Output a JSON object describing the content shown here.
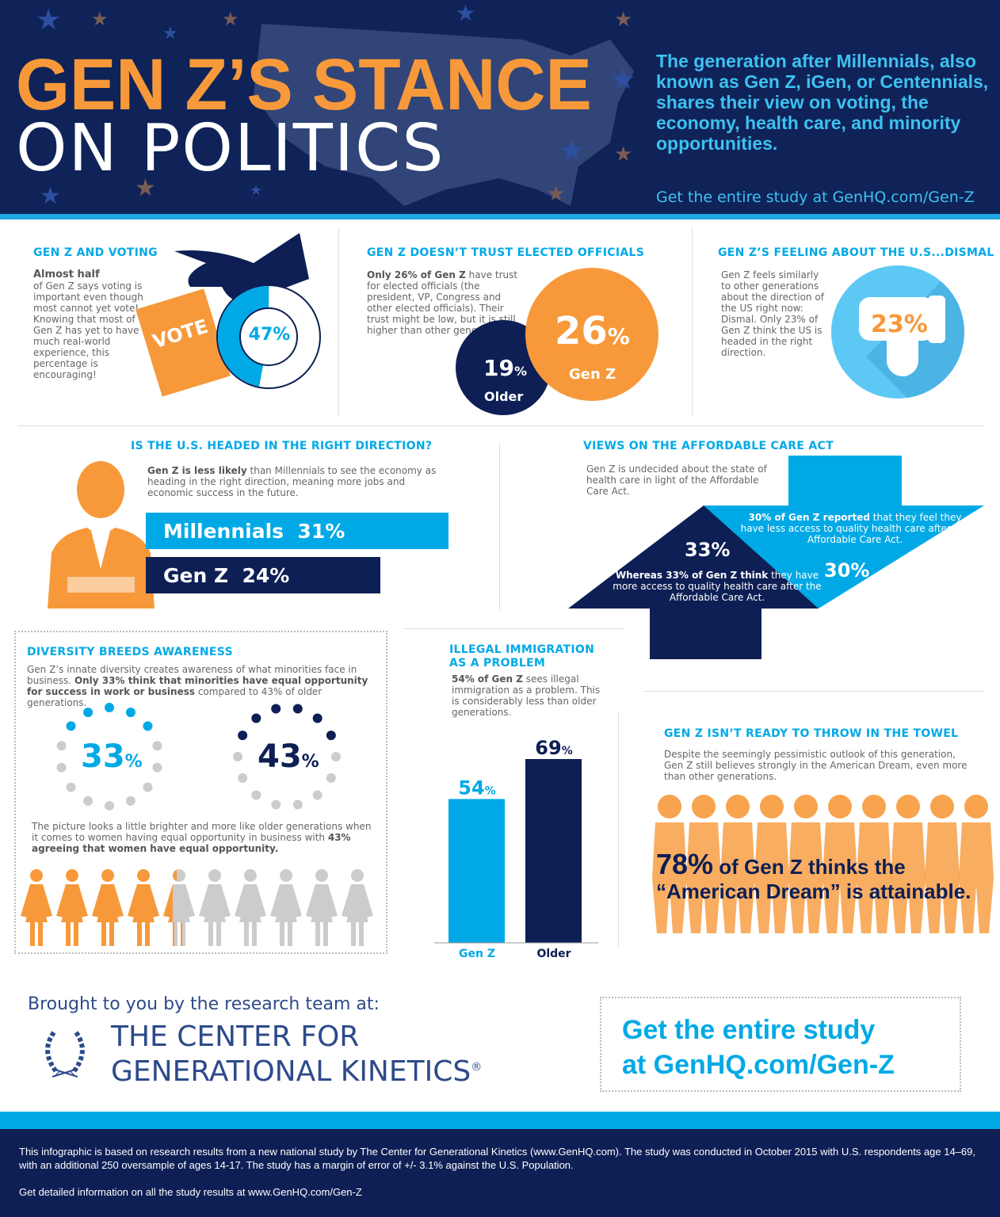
{
  "colors": {
    "navy": "#0d1f54",
    "blue": "#00a9e6",
    "orange": "#f7993a",
    "gray": "#cccccc"
  },
  "header": {
    "title_line1": "GEN Z’S STANCE",
    "title_line2": "ON POLITICS",
    "intro": "The generation after Millennials, also known as Gen Z, iGen, or Centennials, shares their view on voting, the economy, health care, and minority opportunities.",
    "study_link": "Get the entire study at GenHQ.com/Gen-Z"
  },
  "voting": {
    "heading": "GEN Z AND VOTING",
    "lead": "Almost half",
    "body": "of Gen Z says voting is important even though most cannot yet vote! Knowing that most of Gen Z has yet to have much real-world experience, this percentage is encouraging!",
    "ballot": "VOTE",
    "percent": 47,
    "percent_label": "47%",
    "icon": "hand-ballot-icon"
  },
  "trust": {
    "heading": "GEN Z DOESN’T TRUST ELECTED OFFICIALS",
    "lead": "Only 26% of Gen Z",
    "body": " have trust for elected officials (the president, VP, Congress and other elected officials). Their trust might be low, but it is still higher than other generations.",
    "genz_value": "26",
    "genz_label": "Gen Z",
    "older_value": "19",
    "older_label": "Older",
    "pct": "%"
  },
  "feeling": {
    "heading": "GEN Z’S FEELING ABOUT THE U.S...DISMAL",
    "body": "Gen Z feels similarly to other generations about the direction of the US right now: Dismal. Only 23% of Gen Z think the US is headed in the right direction.",
    "value": "23%",
    "icon": "thumbs-down-icon"
  },
  "direction": {
    "heading": "IS THE U.S. HEADED IN THE RIGHT DIRECTION?",
    "lead": "Gen Z is less likely",
    "body": " than Millennials to see the economy as heading in the right direction, meaning more jobs and economic success in the future.",
    "bars": [
      {
        "label": "Millennials  31%",
        "value": 31
      },
      {
        "label": "Gen Z  24%",
        "value": 24
      }
    ],
    "icon": "businessman-icon"
  },
  "aca": {
    "heading": "VIEWS ON THE AFFORDABLE CARE ACT",
    "body": "Gen Z is undecided about the state of health care in light of the Affordable Care Act.",
    "less_lead": "30% of Gen Z reported",
    "less_body": " that they feel they have less access to quality health care after the Affordable Care Act.",
    "less_value": "30%",
    "more_value": "33%",
    "more_lead": "Whereas 33% of Gen Z think",
    "more_body": " they have more access to quality health care after the Affordable Care Act."
  },
  "diversity": {
    "heading": "DIVERSITY BREEDS AWARENESS",
    "body_pre": "Gen Z’s innate diversity creates awareness of what minorities face in business. ",
    "body_bold": "Only 33% think that minorities have equal opportunity for success in work or business",
    "body_post": " compared to 43% of older generations.",
    "genz_value": "33",
    "older_value": "43",
    "pct": "%",
    "genz_percent": 33,
    "older_percent": 43,
    "women_pre": "The picture looks a little brighter and more like older generations when it comes to women having equal opportunity in business with ",
    "women_bold": "43% agreeing that women have equal opportunity.",
    "women_percent": 43,
    "icon": "woman-icon"
  },
  "chart_data": {
    "type": "bar",
    "title": "ILLEGAL IMMIGRATION AS A PROBLEM",
    "categories": [
      "Gen Z",
      "Older"
    ],
    "values": [
      54,
      69
    ],
    "data_labels": [
      "54",
      "69"
    ],
    "unit": "%",
    "ylim": [
      0,
      100
    ]
  },
  "immigration": {
    "heading_line1": "ILLEGAL IMMIGRATION",
    "heading_line2": "AS A PROBLEM",
    "lead": "54% of Gen Z",
    "body": " sees illegal immigration as a problem. This is considerably less than older generations."
  },
  "towel": {
    "heading": "GEN Z ISN’T READY TO THROW IN THE TOWEL",
    "body": "Despite the seemingly pessimistic outlook of this generation, Gen Z still believes strongly in the American Dream, even more than other generations.",
    "value": "78%",
    "line1": " of Gen Z thinks the",
    "line2": "“American Dream” is attainable.",
    "icon": "youth-group-icon"
  },
  "credit": {
    "brought": "Brought to you by the research team at:",
    "org_line1": "THE CENTER FOR",
    "org_line2": "GENERATIONAL KINETICS",
    "reg": "®",
    "logo": "laurel-wreath-icon",
    "cta_line1": "Get the entire study",
    "cta_line2": "at GenHQ.com/Gen-Z"
  },
  "footer": {
    "line1": "This infographic is based on research results from a new national study by The Center for Generational Kinetics (www.GenHQ.com). The study was conducted in October 2015 with U.S. respondents age 14–69, with an additional 250 oversample of ages 14-17. The study has a margin of error of +/- 3.1% against the U.S. Population.",
    "line2": "Get detailed information on all the study results at www.GenHQ.com/Gen-Z"
  }
}
